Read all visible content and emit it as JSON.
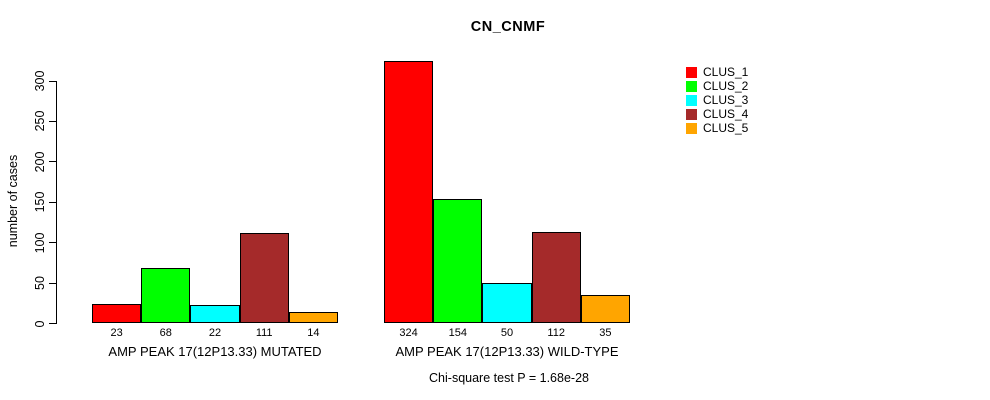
{
  "chart_data": {
    "type": "bar",
    "title": "CN_CNMF",
    "ylabel": "number of cases",
    "xlabel": "",
    "ylim": [
      0,
      300
    ],
    "yticks": [
      0,
      50,
      100,
      150,
      200,
      250,
      300
    ],
    "grid": false,
    "legend_position": "top-right",
    "bar_value_labels": true,
    "series": [
      {
        "name": "CLUS_1",
        "color": "#FF0000"
      },
      {
        "name": "CLUS_2",
        "color": "#00FF00"
      },
      {
        "name": "CLUS_3",
        "color": "#00FFFF"
      },
      {
        "name": "CLUS_4",
        "color": "#A52A2A"
      },
      {
        "name": "CLUS_5",
        "color": "#FFA500"
      }
    ],
    "groups": [
      {
        "label": "AMP PEAK 17(12P13.33) MUTATED",
        "values": [
          23,
          68,
          22,
          111,
          14
        ]
      },
      {
        "label": "AMP PEAK 17(12P13.33) WILD-TYPE",
        "values": [
          324,
          154,
          50,
          112,
          35
        ]
      }
    ],
    "annotation": "Chi-square test P = 1.68e-28"
  }
}
